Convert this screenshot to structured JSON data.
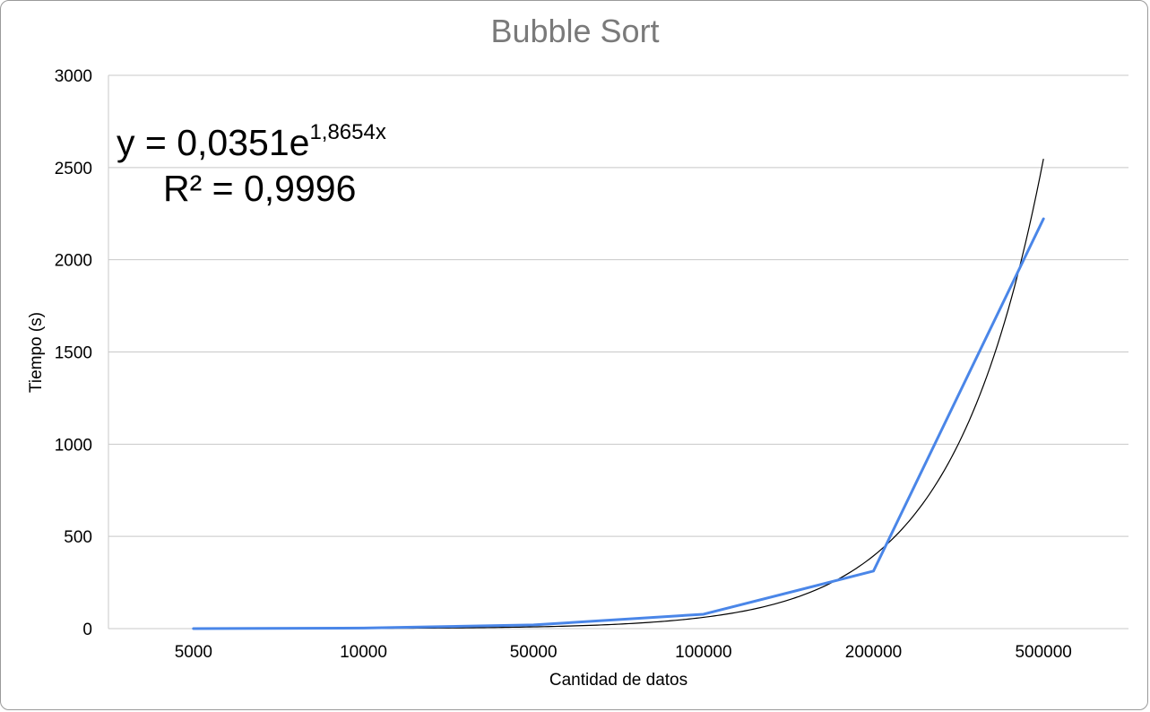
{
  "chart_data": {
    "type": "line",
    "title": "Bubble Sort",
    "xlabel": "Cantidad de datos",
    "ylabel": "Tiempo (s)",
    "categories": [
      "5000",
      "10000",
      "50000",
      "100000",
      "200000",
      "500000"
    ],
    "series": [
      {
        "values": [
          0,
          3,
          20,
          78,
          312,
          2222
        ]
      }
    ],
    "trendline": {
      "type": "exponential",
      "equation_prefix": "y = 0,0351e",
      "equation_exponent": "1,8654x",
      "r2_label": "R² = 0,9996",
      "a": 0.0351,
      "b": 1.8654
    },
    "ylim": [
      0,
      3000
    ],
    "yticks": [
      0,
      500,
      1000,
      1500,
      2000,
      2500,
      3000
    ],
    "grid": true,
    "legend": "none",
    "colors": {
      "series": "#4a86e8",
      "trendline": "#000000",
      "grid": "#c8c8c8",
      "title": "#7a7a7a"
    }
  }
}
